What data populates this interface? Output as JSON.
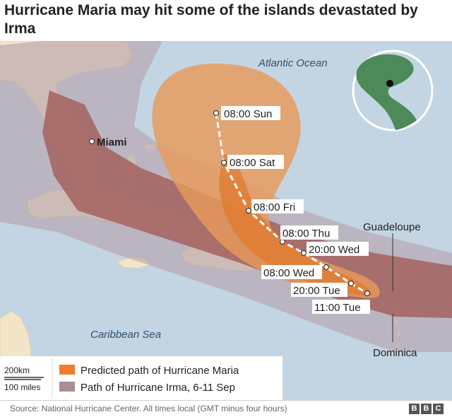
{
  "title": "Hurricane Maria may hit some of the islands devastated by Irma",
  "labels": {
    "atlantic": "Atlantic Ocean",
    "caribbean": "Caribbean Sea",
    "miami": "Miami",
    "guadeloupe": "Guadeloupe",
    "dominica": "Dominica"
  },
  "track_points": [
    {
      "label": "08:00 Sun"
    },
    {
      "label": "08:00 Sat"
    },
    {
      "label": "08:00 Fri"
    },
    {
      "label": "08:00 Thu"
    },
    {
      "label": "20:00 Wed"
    },
    {
      "label": "08:00 Wed"
    },
    {
      "label": "20:00 Tue"
    },
    {
      "label": "11:00 Tue"
    }
  ],
  "scale": {
    "km": "200km",
    "miles": "100 miles"
  },
  "legend": {
    "maria": {
      "label": "Predicted path of Hurricane Maria",
      "color": "#f07c28"
    },
    "irma": {
      "label": "Path of Hurricane Irma, 6-11 Sep",
      "color": "#a88e91"
    }
  },
  "footer": {
    "source": "Source: National Hurricane Center. All times local (GMT minus four hours)",
    "logo": [
      "B",
      "B",
      "C"
    ]
  },
  "colors": {
    "sea": "#c3d5e3",
    "land": "#f3e5c7",
    "irma_outer": "#b5a2ad",
    "irma_inner": "#a05a55",
    "maria_cone": "#e89a5a",
    "maria_core": "#e0782c"
  }
}
